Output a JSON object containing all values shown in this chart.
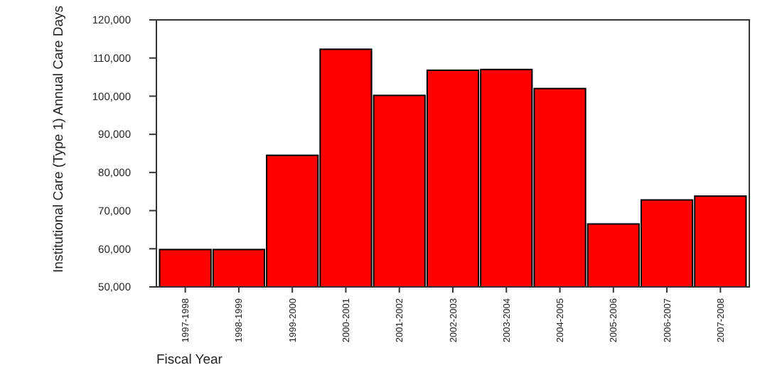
{
  "chart_data": {
    "type": "bar",
    "xlabel": "Fiscal Year",
    "ylabel": "Institutional Care (Type 1) Annual Care Days",
    "categories": [
      "1997-1998",
      "1998-1999",
      "1999-2000",
      "2000-2001",
      "2001-2002",
      "2002-2003",
      "2003-2004",
      "2004-2005",
      "2005-2006",
      "2006-2007",
      "2007-2008"
    ],
    "values": [
      59800,
      59800,
      84500,
      112300,
      100200,
      106800,
      107000,
      102000,
      66500,
      72800,
      73800
    ],
    "color": "#ff0000",
    "ylim": [
      50000,
      120000
    ],
    "yticks": [
      {
        "value": 50000,
        "label": "50,000"
      },
      {
        "value": 60000,
        "label": "60,000"
      },
      {
        "value": 70000,
        "label": "70,000"
      },
      {
        "value": 80000,
        "label": "80,000"
      },
      {
        "value": 90000,
        "label": "90,000"
      },
      {
        "value": 100000,
        "label": "100,000"
      },
      {
        "value": 110000,
        "label": "110,000"
      },
      {
        "value": 120000,
        "label": "120,000"
      }
    ],
    "grid": false
  }
}
